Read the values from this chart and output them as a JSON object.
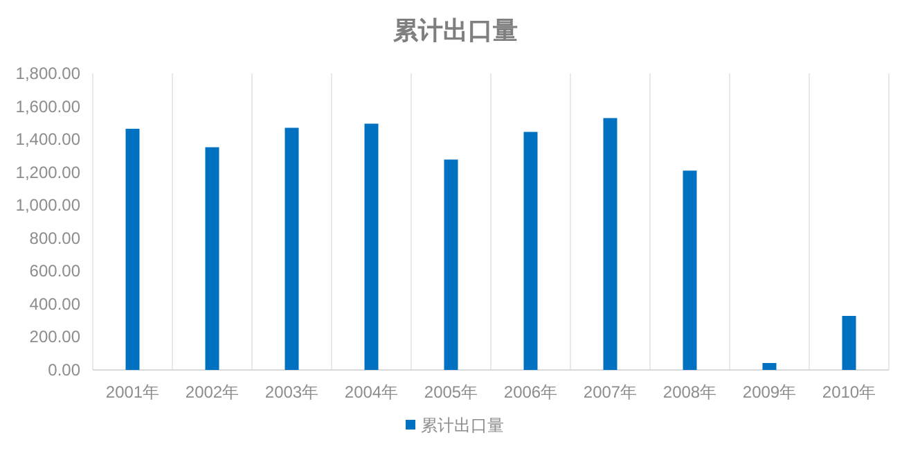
{
  "chart_data": {
    "type": "bar",
    "title": "累计出口量",
    "categories": [
      "2001年",
      "2002年",
      "2003年",
      "2004年",
      "2005年",
      "2006年",
      "2007年",
      "2008年",
      "2009年",
      "2010年"
    ],
    "series": [
      {
        "name": "累计出口量",
        "color": "#0070c0",
        "values": [
          1464,
          1352,
          1470,
          1495,
          1277,
          1445,
          1529,
          1210,
          42,
          328
        ]
      }
    ],
    "ylim": [
      0,
      1800
    ],
    "yticks": [
      {
        "value": 0,
        "label": "0.00"
      },
      {
        "value": 200,
        "label": "200.00"
      },
      {
        "value": 400,
        "label": "400.00"
      },
      {
        "value": 600,
        "label": "600.00"
      },
      {
        "value": 800,
        "label": "800.00"
      },
      {
        "value": 1000,
        "label": "1,000.00"
      },
      {
        "value": 1200,
        "label": "1,200.00"
      },
      {
        "value": 1400,
        "label": "1,400.00"
      },
      {
        "value": 1600,
        "label": "1,600.00"
      },
      {
        "value": 1800,
        "label": "1,800.00"
      }
    ],
    "grid": "x",
    "legend": "bottom"
  }
}
